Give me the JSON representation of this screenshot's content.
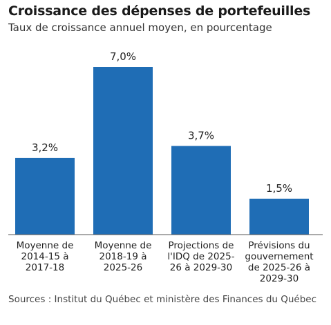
{
  "chart_data": {
    "type": "bar",
    "title": "Croissance des dépenses de portefeuilles",
    "subtitle": "Taux de croissance annuel moyen, en pourcentage",
    "categories": [
      [
        "Moyenne de",
        "2014-15 à",
        "2017-18"
      ],
      [
        "Moyenne de",
        "2018-19 à",
        "2025-26"
      ],
      [
        "Projections de",
        "l'IDQ de 2025-",
        "26 à 2029-30"
      ],
      [
        "Prévisions du",
        "gouvernement",
        "de 2025-26 à",
        "2029-30"
      ]
    ],
    "values": [
      3.2,
      7.0,
      3.7,
      1.5
    ],
    "value_labels": [
      "3,2%",
      "7,0%",
      "3,7%",
      "1,5%"
    ],
    "ylim": [
      0,
      7.0
    ],
    "grid": false,
    "bar_color": "#1f6db5"
  },
  "source": "Sources : Institut du Québec et ministère des Finances du Québec"
}
